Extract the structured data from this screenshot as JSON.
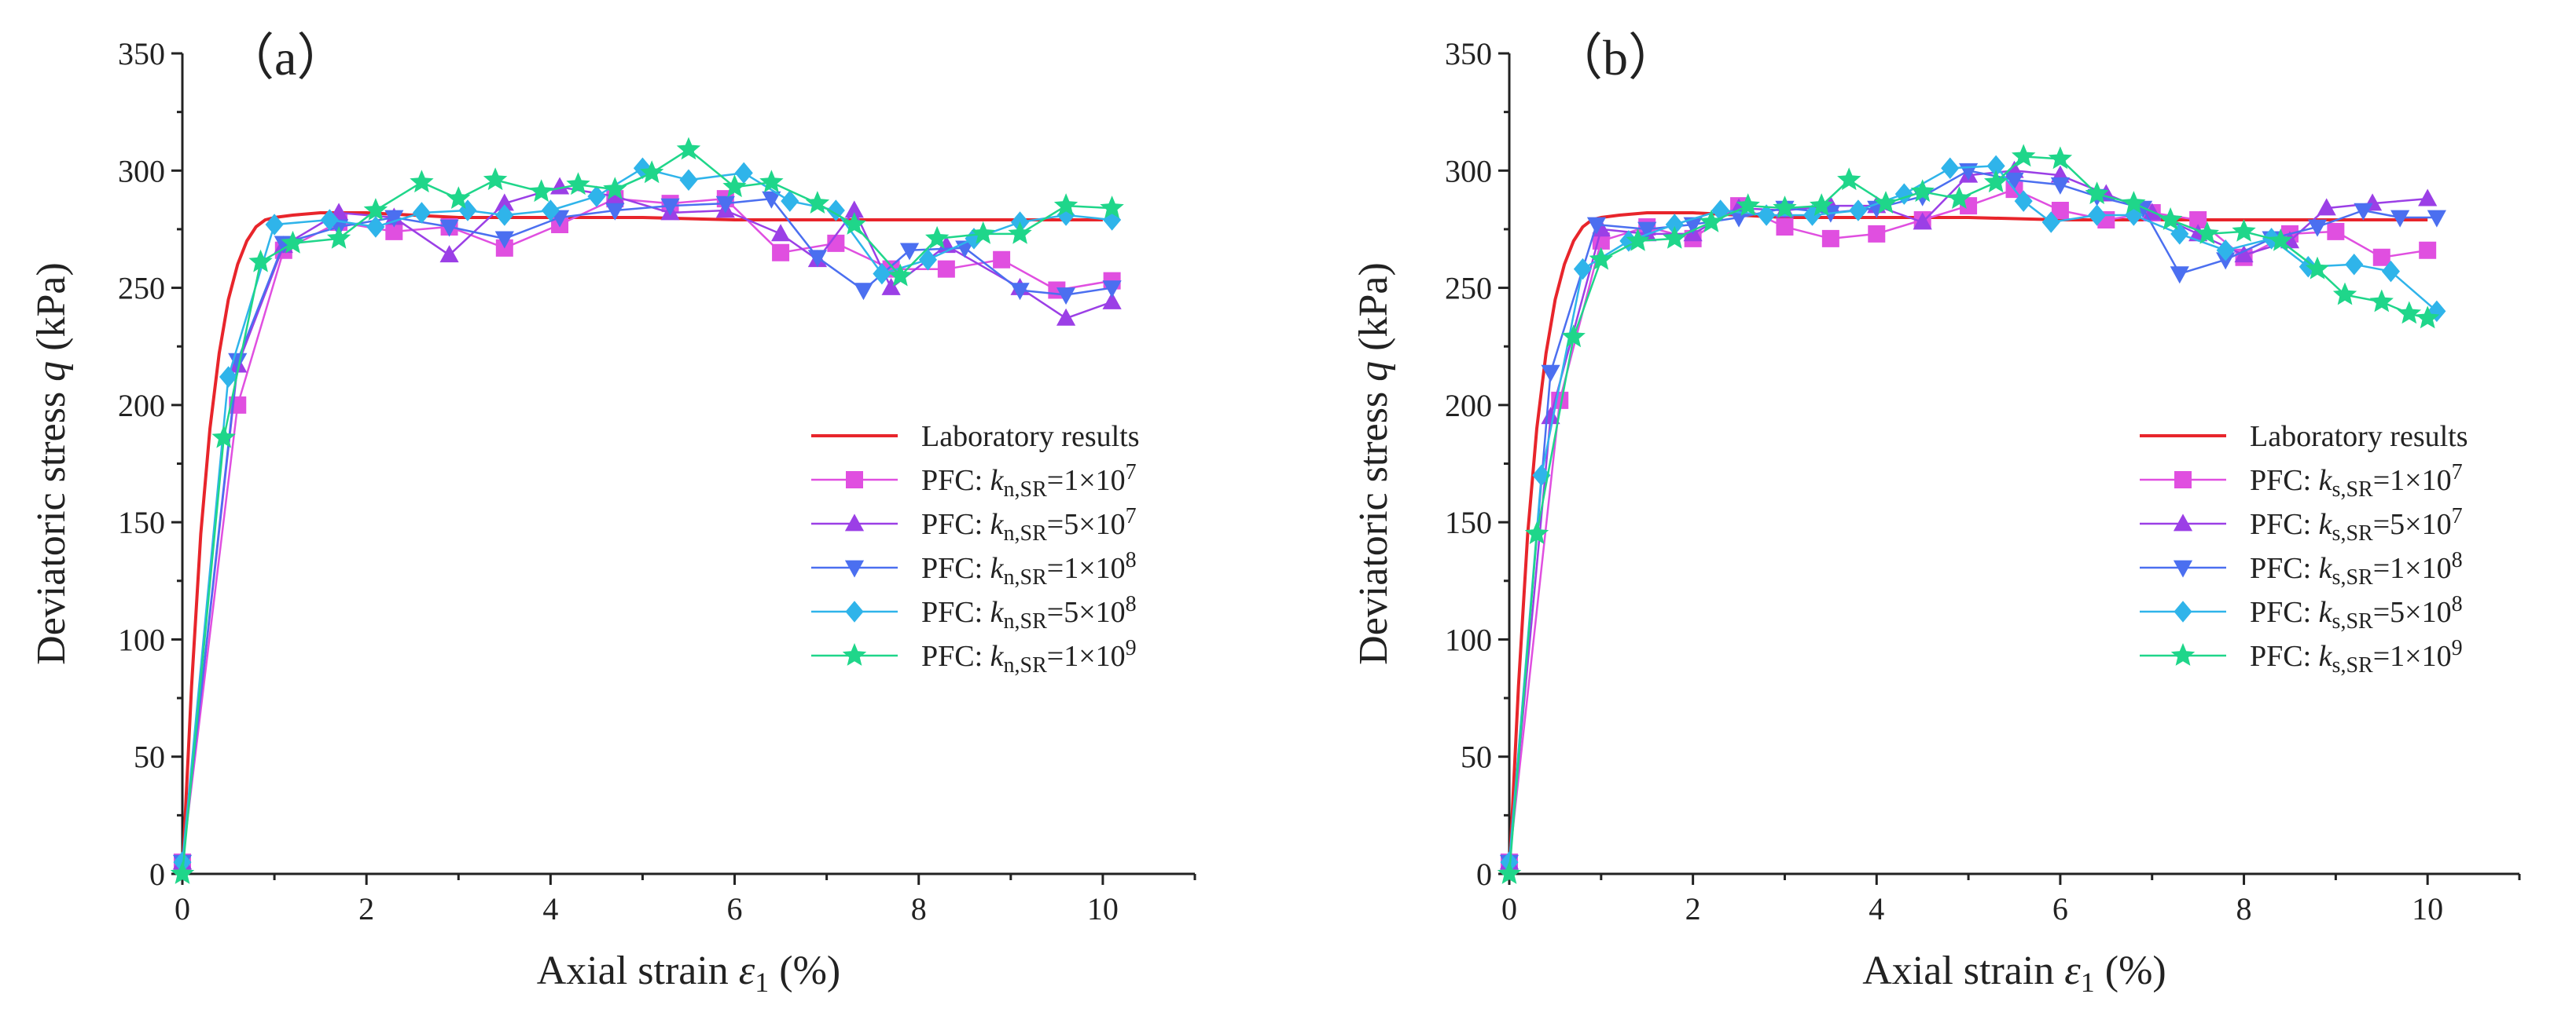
{
  "chart_data": [
    {
      "type": "line",
      "panel_label": "（a）",
      "xlabel_prefix": "Axial strain ",
      "xlabel_symbol": "ε",
      "xlabel_subscript": "1",
      "xlabel_suffix": " (%)",
      "ylabel_prefix": "Deviatoric stress ",
      "ylabel_symbol": "q",
      "ylabel_suffix": " (kPa)",
      "xlim": [
        0,
        11
      ],
      "ylim": [
        0,
        350
      ],
      "xticks": [
        "0",
        "2",
        "4",
        "6",
        "8",
        "10"
      ],
      "yticks": [
        "0",
        "50",
        "100",
        "150",
        "200",
        "250",
        "300",
        "350"
      ],
      "legend_position": "center-right",
      "series": [
        {
          "name": "Laboratory results",
          "label_plain": "Laboratory results",
          "color": "#e8252b",
          "marker": "none",
          "x": [
            0,
            0.1,
            0.2,
            0.3,
            0.4,
            0.5,
            0.6,
            0.7,
            0.8,
            0.9,
            1.0,
            1.2,
            1.5,
            2,
            3,
            4,
            5,
            6,
            7,
            8,
            9,
            10
          ],
          "y": [
            0,
            80,
            145,
            190,
            222,
            245,
            260,
            270,
            276,
            279,
            280,
            281,
            282,
            282,
            280,
            280,
            280,
            279,
            279,
            279,
            279,
            279
          ]
        },
        {
          "name": "PFC: k_n,SR=1×10^7",
          "label_pre": "PFC: ",
          "label_k": "k",
          "label_sub": "n,SR",
          "label_eq": "=1×10",
          "label_exp": "7",
          "color": "#e04fe0",
          "marker": "square",
          "x": [
            0,
            0.6,
            1.1,
            1.7,
            2.3,
            2.9,
            3.5,
            4.1,
            4.7,
            5.3,
            5.9,
            6.5,
            7.1,
            7.7,
            8.3,
            8.9,
            9.5,
            10.1
          ],
          "y": [
            5,
            200,
            266,
            278,
            274,
            276,
            267,
            277,
            288,
            286,
            288,
            265,
            269,
            258,
            258,
            262,
            249,
            253
          ]
        },
        {
          "name": "PFC: k_n,SR=5×10^7",
          "label_pre": "PFC: ",
          "label_k": "k",
          "label_sub": "n,SR",
          "label_eq": "=5×10",
          "label_exp": "7",
          "color": "#9b3fe6",
          "marker": "triangle-up",
          "x": [
            0,
            0.6,
            1.1,
            1.7,
            2.3,
            2.9,
            3.5,
            4.1,
            4.7,
            5.3,
            5.9,
            6.5,
            6.9,
            7.3,
            7.7,
            8.3,
            9.1,
            9.6,
            10.1
          ],
          "y": [
            5,
            217,
            268,
            282,
            280,
            264,
            286,
            293,
            289,
            282,
            283,
            273,
            262,
            283,
            250,
            268,
            250,
            237,
            244
          ]
        },
        {
          "name": "PFC: k_n,SR=1×10^8",
          "label_pre": "PFC: ",
          "label_k": "k",
          "label_sub": "n,SR",
          "label_eq": "=1×10",
          "label_exp": "8",
          "color": "#4b6ff0",
          "marker": "triangle-down",
          "x": [
            0,
            0.6,
            1.1,
            1.7,
            2.3,
            2.9,
            3.5,
            4.1,
            4.7,
            5.3,
            5.9,
            6.4,
            6.9,
            7.4,
            7.9,
            8.5,
            9.1,
            9.6,
            10.1
          ],
          "y": [
            5,
            219,
            269,
            276,
            280,
            276,
            271,
            280,
            283,
            285,
            286,
            288,
            263,
            249,
            266,
            267,
            249,
            247,
            250
          ]
        },
        {
          "name": "PFC: k_n,SR=5×10^8",
          "label_pre": "PFC: ",
          "label_k": "k",
          "label_sub": "n,SR",
          "label_eq": "=5×10",
          "label_exp": "8",
          "color": "#2fb4ea",
          "marker": "diamond",
          "x": [
            0,
            0.5,
            1.0,
            1.6,
            2.1,
            2.6,
            3.1,
            3.5,
            4.0,
            4.5,
            5.0,
            5.5,
            6.1,
            6.6,
            7.1,
            7.6,
            8.1,
            8.6,
            9.1,
            9.6,
            10.1
          ],
          "y": [
            5,
            212,
            277,
            279,
            276,
            282,
            283,
            281,
            283,
            289,
            301,
            296,
            299,
            287,
            283,
            256,
            262,
            271,
            278,
            281,
            279
          ]
        },
        {
          "name": "PFC: k_n,SR=1×10^9",
          "label_pre": "PFC: ",
          "label_k": "k",
          "label_sub": "n,SR",
          "label_eq": "=1×10",
          "label_exp": "9",
          "color": "#1fd68a",
          "marker": "star",
          "x": [
            0,
            0.45,
            0.85,
            1.2,
            1.7,
            2.1,
            2.6,
            3.0,
            3.4,
            3.9,
            4.3,
            4.7,
            5.1,
            5.5,
            6.0,
            6.4,
            6.9,
            7.3,
            7.8,
            8.2,
            8.7,
            9.1,
            9.6,
            10.1
          ],
          "y": [
            0,
            186,
            261,
            269,
            271,
            283,
            295,
            288,
            296,
            291,
            294,
            292,
            299,
            309,
            293,
            295,
            286,
            277,
            255,
            271,
            273,
            273,
            285,
            284
          ]
        }
      ]
    },
    {
      "type": "line",
      "panel_label": "（b）",
      "xlabel_prefix": "Axial strain ",
      "xlabel_symbol": "ε",
      "xlabel_subscript": "1",
      "xlabel_suffix": " (%)",
      "ylabel_prefix": "Deviatoric stress ",
      "ylabel_symbol": "q",
      "ylabel_suffix": " (kPa)",
      "xlim": [
        0,
        11
      ],
      "ylim": [
        0,
        350
      ],
      "xticks": [
        "0",
        "2",
        "4",
        "6",
        "8",
        "10"
      ],
      "yticks": [
        "0",
        "50",
        "100",
        "150",
        "200",
        "250",
        "300",
        "350"
      ],
      "legend_position": "center-right",
      "series": [
        {
          "name": "Laboratory results",
          "label_plain": "Laboratory results",
          "color": "#e8252b",
          "marker": "none",
          "x": [
            0,
            0.1,
            0.2,
            0.3,
            0.4,
            0.5,
            0.6,
            0.7,
            0.8,
            0.9,
            1.0,
            1.2,
            1.5,
            2,
            3,
            4,
            5,
            6,
            7,
            8,
            9,
            10
          ],
          "y": [
            0,
            80,
            145,
            190,
            222,
            245,
            260,
            270,
            276,
            279,
            280,
            281,
            282,
            282,
            280,
            280,
            280,
            279,
            279,
            279,
            279,
            279
          ]
        },
        {
          "name": "PFC: k_s,SR=1×10^7",
          "label_pre": "PFC: ",
          "label_k": "k",
          "label_sub": "s,SR",
          "label_eq": "=1×10",
          "label_exp": "7",
          "color": "#e04fe0",
          "marker": "square",
          "x": [
            0,
            0.55,
            1.0,
            1.5,
            2.0,
            2.5,
            3.0,
            3.5,
            4.0,
            4.5,
            5.0,
            5.5,
            6.0,
            6.5,
            7.0,
            7.5,
            8.0,
            8.5,
            9.0,
            9.5,
            10.0
          ],
          "y": [
            5,
            202,
            270,
            276,
            271,
            285,
            276,
            271,
            273,
            279,
            285,
            292,
            283,
            279,
            282,
            279,
            263,
            273,
            274,
            263,
            266
          ]
        },
        {
          "name": "PFC: k_s,SR=5×10^7",
          "label_pre": "PFC: ",
          "label_k": "k",
          "label_sub": "s,SR",
          "label_eq": "=5×10",
          "label_exp": "7",
          "color": "#9b3fe6",
          "marker": "triangle-up",
          "x": [
            0,
            0.45,
            1.0,
            1.5,
            2.0,
            2.5,
            3.0,
            3.5,
            4.0,
            4.5,
            5.0,
            5.5,
            6.0,
            6.5,
            7.0,
            7.5,
            8.0,
            8.5,
            8.9,
            9.4,
            10.0
          ],
          "y": [
            5,
            195,
            275,
            273,
            273,
            284,
            283,
            285,
            285,
            278,
            298,
            300,
            298,
            290,
            282,
            273,
            264,
            270,
            284,
            286,
            288
          ]
        },
        {
          "name": "PFC: k_s,SR=1×10^8",
          "label_pre": "PFC: ",
          "label_k": "k",
          "label_sub": "s,SR",
          "label_eq": "=1×10",
          "label_exp": "8",
          "color": "#4b6ff0",
          "marker": "triangle-down",
          "x": [
            0,
            0.45,
            0.95,
            1.5,
            2.0,
            2.5,
            3.0,
            3.5,
            4.0,
            4.5,
            5.0,
            5.5,
            6.0,
            6.4,
            6.9,
            7.3,
            7.8,
            8.3,
            8.8,
            9.3,
            9.7,
            10.1
          ],
          "y": [
            5,
            214,
            277,
            275,
            277,
            280,
            284,
            282,
            284,
            289,
            300,
            296,
            294,
            289,
            284,
            256,
            262,
            271,
            276,
            283,
            280,
            280
          ]
        },
        {
          "name": "PFC: k_s,SR=5×10^8",
          "label_pre": "PFC: ",
          "label_k": "k",
          "label_sub": "s,SR",
          "label_eq": "=5×10",
          "label_exp": "8",
          "color": "#2fb4ea",
          "marker": "diamond",
          "x": [
            0,
            0.35,
            0.8,
            1.3,
            1.8,
            2.3,
            2.8,
            3.3,
            3.8,
            4.3,
            4.8,
            5.3,
            5.6,
            5.9,
            6.4,
            6.8,
            7.3,
            7.8,
            8.3,
            8.7,
            9.2,
            9.6,
            10.1
          ],
          "y": [
            5,
            170,
            258,
            270,
            277,
            283,
            281,
            281,
            283,
            290,
            301,
            302,
            287,
            278,
            281,
            281,
            273,
            266,
            271,
            259,
            260,
            257,
            240
          ]
        },
        {
          "name": "PFC: k_s,SR=1×10^9",
          "label_pre": "PFC: ",
          "label_k": "k",
          "label_sub": "s,SR",
          "label_eq": "=1×10",
          "label_exp": "9",
          "color": "#1fd68a",
          "marker": "star",
          "x": [
            0,
            0.3,
            0.7,
            1.0,
            1.4,
            1.8,
            2.2,
            2.6,
            3.0,
            3.4,
            3.7,
            4.1,
            4.5,
            4.9,
            5.3,
            5.6,
            6.0,
            6.4,
            6.8,
            7.2,
            7.6,
            8.0,
            8.4,
            8.8,
            9.1,
            9.5,
            9.8,
            10.0
          ],
          "y": [
            0,
            145,
            229,
            262,
            270,
            271,
            278,
            285,
            284,
            285,
            296,
            286,
            291,
            288,
            295,
            306,
            305,
            290,
            286,
            279,
            273,
            274,
            270,
            258,
            247,
            244,
            239,
            237
          ]
        }
      ]
    }
  ]
}
